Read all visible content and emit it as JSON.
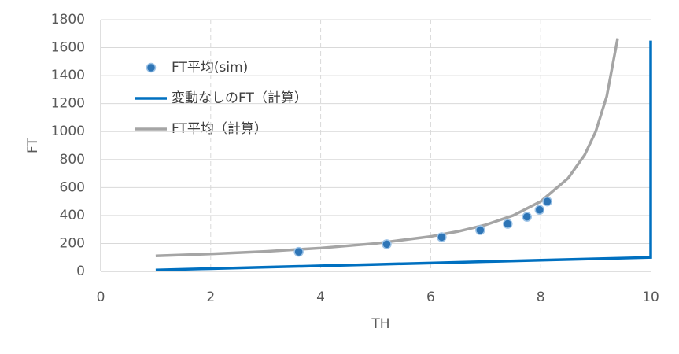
{
  "chart_data": {
    "type": "scatter-line",
    "x_label": "TH",
    "y_label": "FT",
    "xlim": [
      0,
      10
    ],
    "xticks": [
      0,
      2,
      4,
      6,
      8,
      10
    ],
    "ylim": [
      0,
      1800
    ],
    "yticks": [
      0,
      200,
      400,
      600,
      800,
      1000,
      1200,
      1400,
      1600,
      1800
    ],
    "grid": true,
    "legend": "upper-left",
    "series": [
      {
        "name": "FT平均(sim)",
        "kind": "markers",
        "color": "#2e75b6",
        "x": [
          3.6,
          5.2,
          6.2,
          6.9,
          7.4,
          7.75,
          7.98,
          8.12
        ],
        "values": [
          140,
          195,
          245,
          295,
          340,
          390,
          440,
          500
        ]
      },
      {
        "name": "変動なしのFT（計算）",
        "kind": "line",
        "color": "#0070c0",
        "x": [
          1,
          2,
          3,
          4,
          5,
          6,
          7,
          8,
          9,
          10,
          10
        ],
        "values": [
          10,
          20,
          30,
          40,
          50,
          60,
          70,
          80,
          90,
          100,
          1650
        ]
      },
      {
        "name": "FT平均（計算）",
        "kind": "line",
        "color": "#a5a5a5",
        "x": [
          1,
          2,
          3,
          4,
          5,
          6,
          6.5,
          7,
          7.5,
          8,
          8.5,
          8.8,
          9,
          9.2,
          9.4
        ],
        "values": [
          111,
          125,
          143,
          167,
          200,
          250,
          286,
          333,
          400,
          500,
          667,
          833,
          1000,
          1250,
          1667
        ]
      }
    ]
  }
}
